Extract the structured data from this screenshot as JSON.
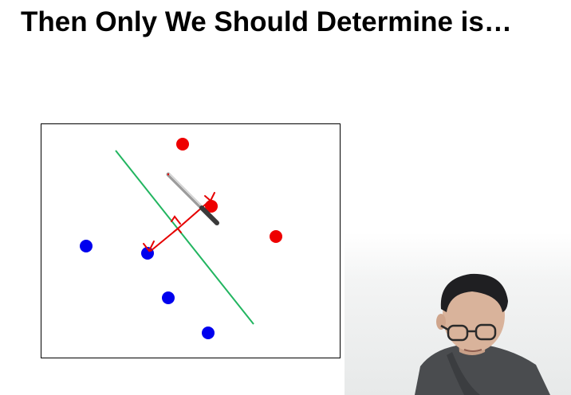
{
  "slide": {
    "title": "Then Only We Should Determine is…"
  },
  "diagram": {
    "class_colors": {
      "positive": "#ee0000",
      "negative": "#0000ee"
    },
    "boundary_color": "#22b560",
    "margin_arrow_color": "#e60000"
  },
  "webcam": {
    "icon": "presenter-video-feed"
  }
}
